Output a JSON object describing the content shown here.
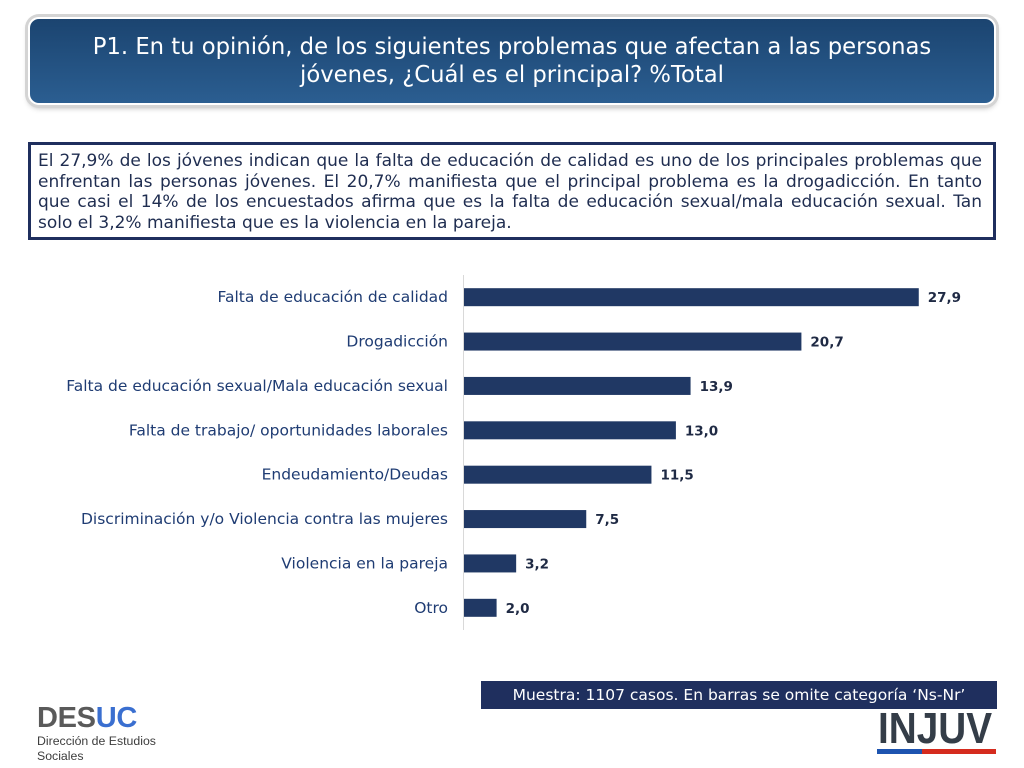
{
  "header": {
    "title_lines": [
      "P1. En tu opinión, de los siguientes problemas que afectan a las personas",
      "jóvenes, ¿Cuál es el principal? %Total"
    ]
  },
  "summary": {
    "text": "El 27,9% de los jóvenes indican que la falta de educación de calidad es uno de los principales problemas que enfrentan las personas jóvenes. El 20,7% manifiesta que el principal problema es la drogadicción. En tanto que casi el 14% de los encuestados afirma que es la falta de educación sexual/mala educación sexual. Tan solo el 3,2% manifiesta que es la violencia en la pareja."
  },
  "chart_data": {
    "type": "bar",
    "orientation": "horizontal",
    "title": "",
    "xlabel": "",
    "ylabel": "",
    "categories": [
      "Falta de educación de calidad",
      "Drogadicción",
      "Falta de educación sexual/Mala educación sexual",
      "Falta de trabajo/ oportunidades laborales",
      "Endeudamiento/Deudas",
      "Discriminación y/o Violencia contra las mujeres",
      "Violencia en la pareja",
      "Otro"
    ],
    "values": [
      27.9,
      20.7,
      13.9,
      13.0,
      11.5,
      7.5,
      3.2,
      2.0
    ],
    "value_labels": [
      "27,9",
      "20,7",
      "13,9",
      "13,0",
      "11,5",
      "7,5",
      "3,2",
      "2,0"
    ],
    "xlim": [
      0,
      30
    ],
    "grid": false
  },
  "footer": {
    "sample_note": "Muestra: 1107 casos. En barras se omite categoría ‘Ns-Nr’"
  },
  "logos": {
    "desuc": {
      "mark_part1": "DES",
      "mark_part2": "UC",
      "subtitle_line1": "Dirección de Estudios",
      "subtitle_line2": "Sociales"
    },
    "injuv": {
      "wordmark": "INJUV"
    }
  },
  "colors": {
    "banner_top": "#1b4470",
    "banner_bottom": "#2b5e91",
    "navy": "#1f2f5e",
    "summary_text": "#1f2d50",
    "bar": "#203864",
    "axis": "#d9d9d9",
    "category_label": "#1f3c73",
    "value_label": "#1f2a44",
    "desuc_gray": "#5a5a5a",
    "desuc_blue": "#3a6fd0",
    "injuv_text": "#343d48",
    "flag_blue": "#1d54b0",
    "flag_red": "#d52b1e"
  }
}
